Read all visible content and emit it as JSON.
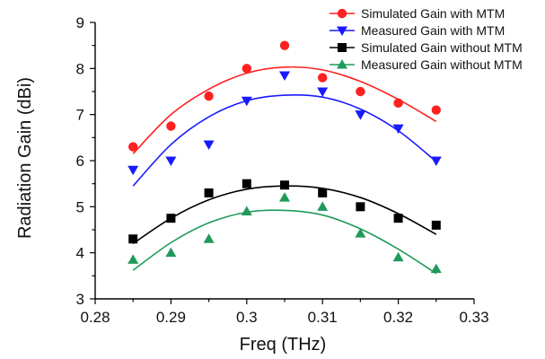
{
  "chart_data": {
    "type": "scatter",
    "xlabel": "Freq (THz)",
    "ylabel": "Radiation Gain (dBi)",
    "xlim": [
      0.28,
      0.33
    ],
    "ylim": [
      3,
      9
    ],
    "xticks": [
      "0.28",
      "0.29",
      "0.3",
      "0.31",
      "0.32",
      "0.33"
    ],
    "yticks": [
      "3",
      "4",
      "5",
      "6",
      "7",
      "8",
      "9"
    ],
    "legend_position": "top-right",
    "x": [
      0.285,
      0.29,
      0.295,
      0.3,
      0.305,
      0.31,
      0.315,
      0.32,
      0.325
    ],
    "series": [
      {
        "name": "Simulated Gain with MTM",
        "marker": "circle",
        "color": "#ff2020",
        "values": [
          6.3,
          6.75,
          7.4,
          8.0,
          8.5,
          7.8,
          7.5,
          7.25,
          7.1
        ],
        "fit": [
          6.15,
          7.0,
          7.55,
          7.9,
          8.03,
          7.97,
          7.72,
          7.33,
          6.85
        ]
      },
      {
        "name": "Measured Gain with MTM",
        "marker": "triangle-down",
        "color": "#1a1aff",
        "values": [
          5.8,
          6.0,
          6.35,
          7.3,
          7.85,
          7.5,
          7.0,
          6.7,
          6.0
        ],
        "fit": [
          5.45,
          6.35,
          6.95,
          7.3,
          7.42,
          7.38,
          7.12,
          6.65,
          5.98
        ]
      },
      {
        "name": "Simulated Gain without MTM",
        "marker": "square",
        "color": "#000000",
        "values": [
          4.3,
          4.75,
          5.3,
          5.5,
          5.47,
          5.3,
          5.0,
          4.75,
          4.6
        ],
        "fit": [
          4.2,
          4.75,
          5.15,
          5.38,
          5.45,
          5.4,
          5.2,
          4.85,
          4.4
        ]
      },
      {
        "name": "Measured Gain without MTM",
        "marker": "triangle-up",
        "color": "#1f9a5a",
        "values": [
          3.85,
          4.0,
          4.3,
          4.9,
          5.2,
          5.0,
          4.42,
          3.9,
          3.65
        ],
        "fit": [
          3.62,
          4.22,
          4.65,
          4.88,
          4.92,
          4.82,
          4.52,
          4.08,
          3.55
        ]
      }
    ]
  }
}
